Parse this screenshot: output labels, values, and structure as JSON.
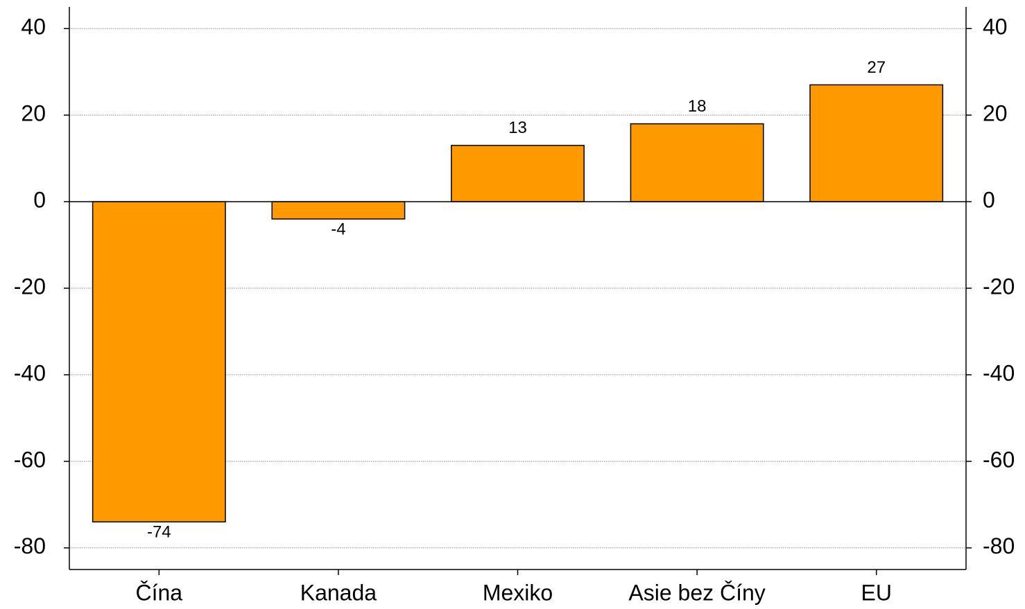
{
  "chart_data": {
    "type": "bar",
    "categories": [
      "Čína",
      "Kanada",
      "Mexiko",
      "Asie bez Číny",
      "EU"
    ],
    "values": [
      -74,
      -4,
      13,
      18,
      27
    ],
    "color": "#ff9900",
    "ylim": [
      -85,
      45
    ],
    "yticks": [
      -80,
      -60,
      -40,
      -20,
      0,
      20,
      40
    ],
    "y2lim": [
      -85,
      45
    ],
    "y2ticks": [
      -80,
      -60,
      -40,
      -20,
      0,
      20,
      40
    ],
    "grid": true
  }
}
